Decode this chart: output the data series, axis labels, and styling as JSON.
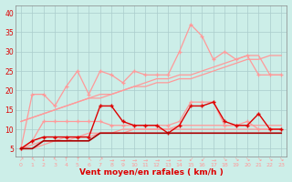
{
  "x": [
    0,
    1,
    2,
    3,
    4,
    5,
    6,
    7,
    8,
    9,
    10,
    11,
    12,
    13,
    14,
    15,
    16,
    17,
    18,
    19,
    20,
    21,
    22,
    23
  ],
  "line_rafales": [
    5,
    19,
    19,
    16,
    21,
    25,
    19,
    25,
    24,
    22,
    25,
    24,
    24,
    24,
    30,
    37,
    34,
    28,
    30,
    28,
    29,
    24,
    24,
    24
  ],
  "line_moyen": [
    5,
    7,
    12,
    12,
    12,
    12,
    12,
    12,
    11,
    11,
    11,
    11,
    11,
    11,
    12,
    17,
    17,
    17,
    11,
    11,
    12,
    10,
    10,
    10
  ],
  "line_trend_hi1": [
    12,
    13,
    14,
    15,
    16,
    17,
    18,
    19,
    19,
    20,
    21,
    21,
    22,
    22,
    23,
    23,
    24,
    25,
    26,
    27,
    28,
    28,
    29,
    29
  ],
  "line_trend_hi2": [
    12,
    13,
    14,
    15,
    16,
    17,
    18,
    18,
    19,
    20,
    21,
    22,
    23,
    23,
    24,
    24,
    25,
    26,
    27,
    28,
    29,
    29,
    24,
    24
  ],
  "line_trend_lo1": [
    5,
    6,
    7,
    7,
    8,
    8,
    9,
    9,
    9,
    10,
    10,
    10,
    10,
    10,
    11,
    11,
    11,
    11,
    11,
    11,
    11,
    11,
    11,
    11
  ],
  "line_trend_lo2": [
    5,
    5,
    6,
    7,
    7,
    8,
    8,
    9,
    9,
    9,
    10,
    10,
    10,
    10,
    10,
    10,
    10,
    10,
    10,
    10,
    10,
    10,
    10,
    10
  ],
  "line_red_rafales": [
    5,
    7,
    8,
    8,
    8,
    8,
    8,
    16,
    16,
    12,
    11,
    11,
    11,
    9,
    11,
    16,
    16,
    17,
    12,
    11,
    11,
    14,
    10,
    10
  ],
  "line_red_moyen": [
    5,
    5,
    7,
    7,
    7,
    7,
    7,
    9,
    9,
    9,
    9,
    9,
    9,
    9,
    9,
    9,
    9,
    9,
    9,
    9,
    9,
    9,
    9,
    9
  ],
  "arrows": [
    "↗",
    "↖",
    "↓",
    "↖",
    "↑",
    "↑",
    "↖",
    "↗",
    "→",
    "→",
    "→",
    "→",
    "→",
    "→",
    "→",
    "↙",
    "↙",
    "→",
    "↘",
    "↘",
    "↘",
    "↘",
    "↘",
    "↘"
  ],
  "bg_color": "#cceee8",
  "grid_color": "#aacccc",
  "color_light": "#ff9999",
  "color_red": "#dd0000",
  "color_dark_red": "#aa0000",
  "yticks": [
    5,
    10,
    15,
    20,
    25,
    30,
    35,
    40
  ],
  "xlabel": "Vent moyen/en rafales ( km/h )",
  "ylim": [
    3,
    42
  ],
  "xlim": [
    -0.5,
    23.5
  ]
}
